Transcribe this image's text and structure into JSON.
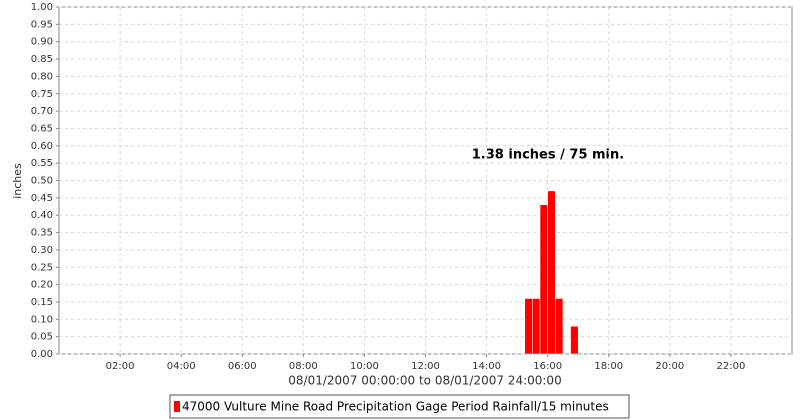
{
  "chart_data": {
    "type": "bar",
    "y_label": "inches",
    "x_label": "08/01/2007 00:00:00 to 08/01/2007 24:00:00",
    "annotation": "1.38 inches / 75 min.",
    "x": [
      15.25,
      15.5,
      15.75,
      16.0,
      16.25,
      16.75
    ],
    "series": [
      {
        "name": "47000 Vulture Mine Road Precipitation Gage Period Rainfall/15 minutes",
        "color": "#ff0000",
        "values": [
          0.16,
          0.16,
          0.43,
          0.47,
          0.16,
          0.08
        ]
      }
    ],
    "xlim": [
      0,
      24
    ],
    "xticks": [
      {
        "value": 2,
        "label": "02:00"
      },
      {
        "value": 4,
        "label": "04:00"
      },
      {
        "value": 6,
        "label": "06:00"
      },
      {
        "value": 8,
        "label": "08:00"
      },
      {
        "value": 10,
        "label": "10:00"
      },
      {
        "value": 12,
        "label": "12:00"
      },
      {
        "value": 14,
        "label": "14:00"
      },
      {
        "value": 16,
        "label": "16:00"
      },
      {
        "value": 18,
        "label": "18:00"
      },
      {
        "value": 20,
        "label": "20:00"
      },
      {
        "value": 22,
        "label": "22:00"
      }
    ],
    "ylim": [
      0,
      1
    ],
    "yticks": [
      {
        "value": 0,
        "label": "0.00"
      },
      {
        "value": 0.05,
        "label": "0.05"
      },
      {
        "value": 0.1,
        "label": "0.10"
      },
      {
        "value": 0.15,
        "label": "0.15"
      },
      {
        "value": 0.2,
        "label": "0.20"
      },
      {
        "value": 0.25,
        "label": "0.25"
      },
      {
        "value": 0.3,
        "label": "0.30"
      },
      {
        "value": 0.35,
        "label": "0.35"
      },
      {
        "value": 0.4,
        "label": "0.40"
      },
      {
        "value": 0.45,
        "label": "0.45"
      },
      {
        "value": 0.5,
        "label": "0.50"
      },
      {
        "value": 0.55,
        "label": "0.55"
      },
      {
        "value": 0.6,
        "label": "0.60"
      },
      {
        "value": 0.65,
        "label": "0.65"
      },
      {
        "value": 0.7,
        "label": "0.70"
      },
      {
        "value": 0.75,
        "label": "0.75"
      },
      {
        "value": 0.8,
        "label": "0.80"
      },
      {
        "value": 0.85,
        "label": "0.85"
      },
      {
        "value": 0.9,
        "label": "0.90"
      },
      {
        "value": 0.95,
        "label": "0.95"
      },
      {
        "value": 1,
        "label": "1.00"
      }
    ],
    "grid": true
  }
}
